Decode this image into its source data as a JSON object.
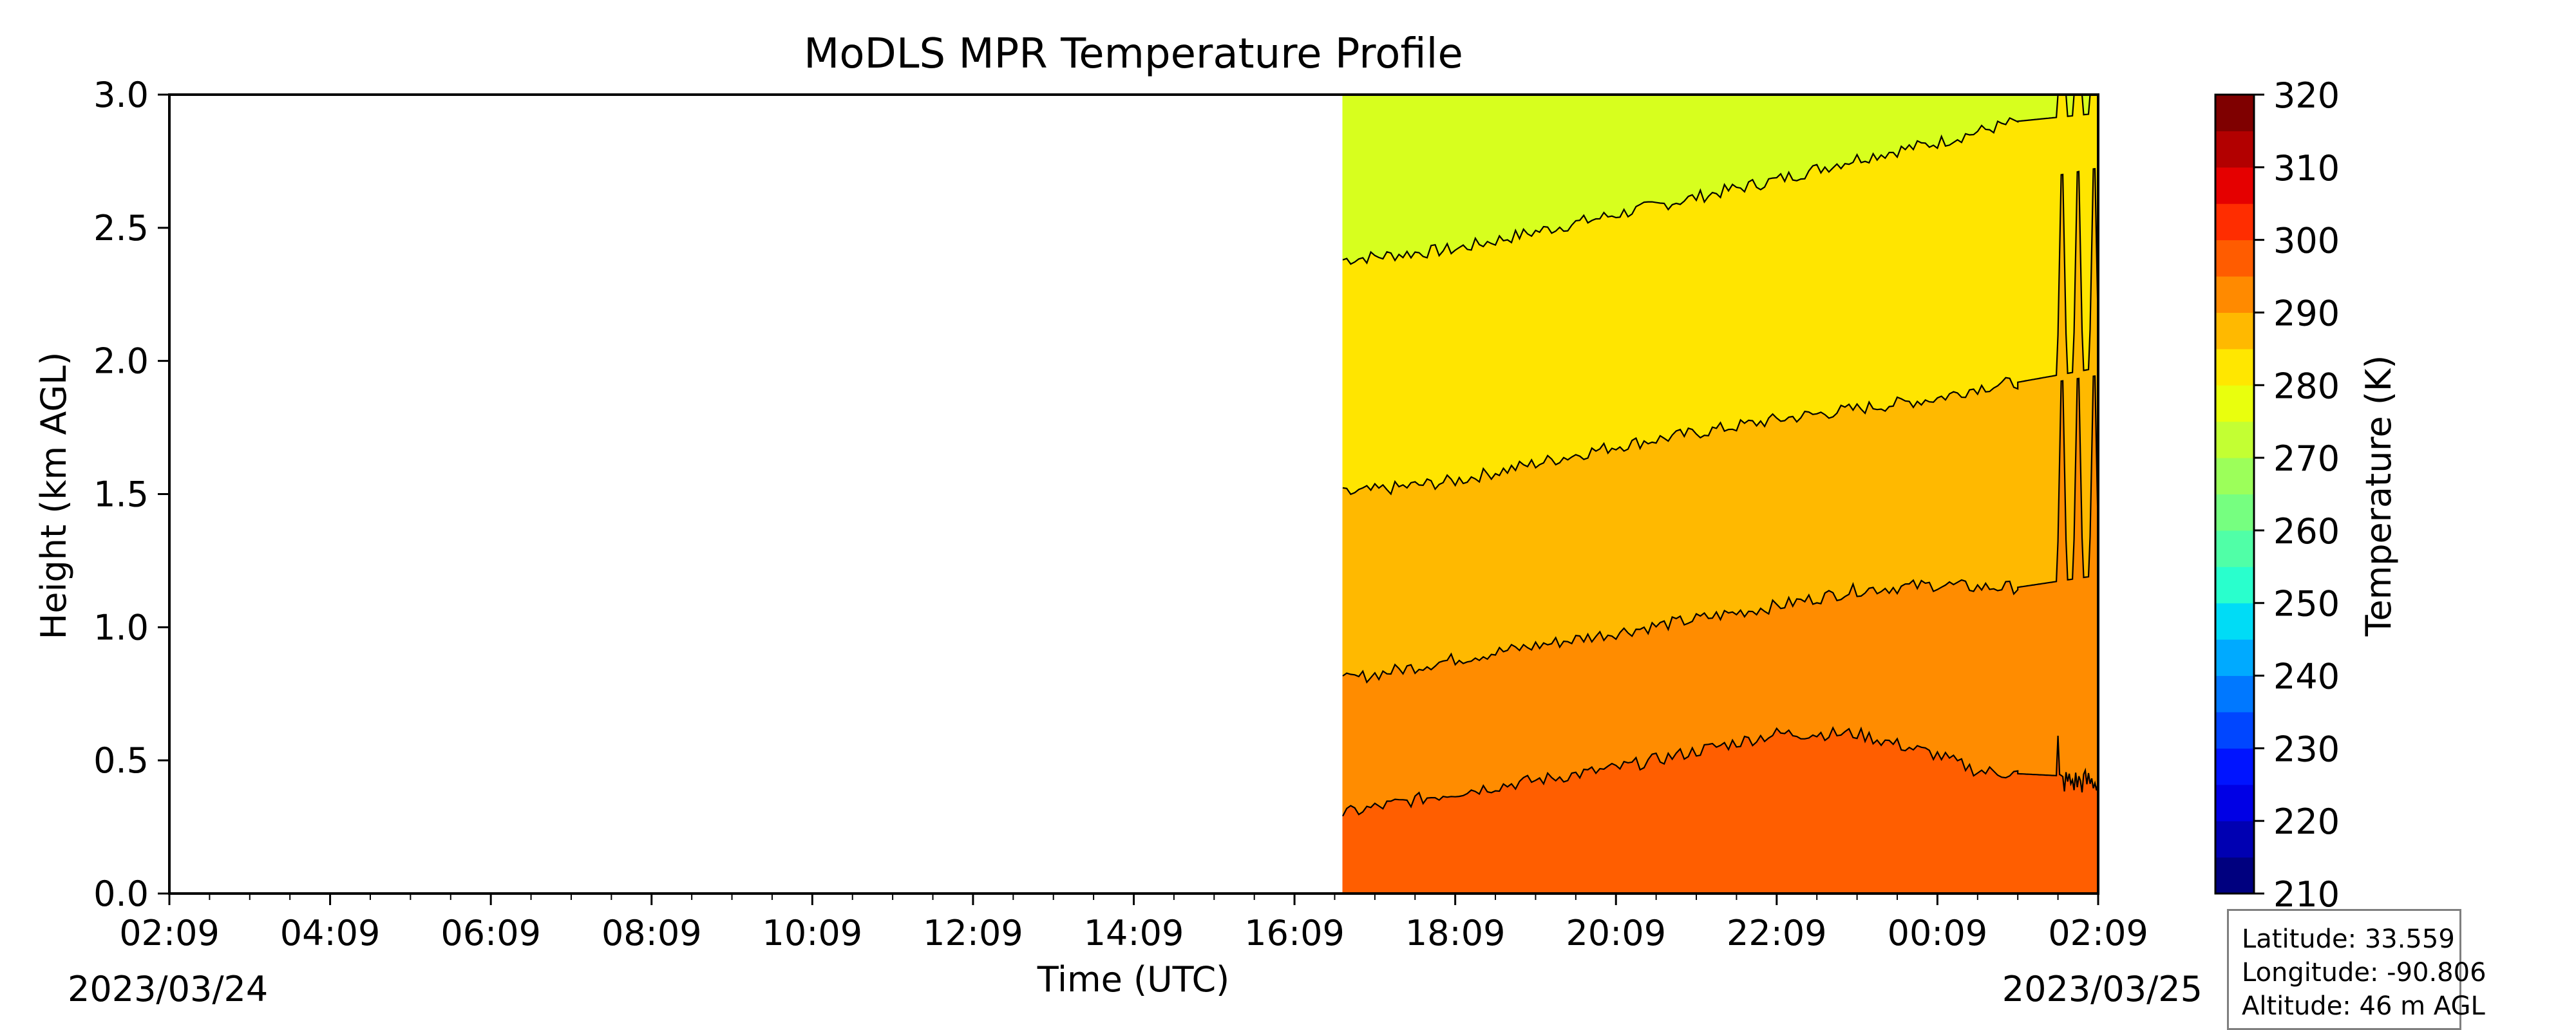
{
  "chart_data": {
    "type": "heatmap",
    "title": "MoDLS MPR Temperature Profile",
    "xlabel": "Time (UTC)",
    "ylabel": "Height (km AGL)",
    "x_tick_labels": [
      "02:09",
      "04:09",
      "06:09",
      "08:09",
      "10:09",
      "12:09",
      "14:09",
      "16:09",
      "18:09",
      "20:09",
      "22:09",
      "00:09",
      "02:09"
    ],
    "x_tick_hours": [
      0,
      2,
      4,
      6,
      8,
      10,
      12,
      14,
      16,
      18,
      20,
      22,
      24
    ],
    "xlim_hours": [
      0,
      24
    ],
    "date_start": "2023/03/24",
    "date_end": "2023/03/25",
    "y_ticks": [
      0.0,
      0.5,
      1.0,
      1.5,
      2.0,
      2.5,
      3.0
    ],
    "y_tick_labels": [
      "0.0",
      "0.5",
      "1.0",
      "1.5",
      "2.0",
      "2.5",
      "3.0"
    ],
    "ylim": [
      0,
      3.0
    ],
    "data_start_hour": 14.6,
    "colorbar": {
      "label": "Temperature (K)",
      "range": [
        210,
        320
      ],
      "ticks": [
        210,
        220,
        230,
        240,
        250,
        260,
        270,
        280,
        290,
        300,
        310,
        320
      ],
      "tick_labels": [
        "210",
        "220",
        "230",
        "240",
        "250",
        "260",
        "270",
        "280",
        "290",
        "300",
        "310",
        "320"
      ],
      "colors": [
        "#00007f",
        "#0000b2",
        "#0000e5",
        "#0014ff",
        "#0046ff",
        "#0078ff",
        "#00aaff",
        "#00dcf6",
        "#29ffcd",
        "#50ffa7",
        "#76ff80",
        "#9cff5a",
        "#c3ff33",
        "#e9ff0d",
        "#ffe700",
        "#ffb900",
        "#ff8a00",
        "#ff5c00",
        "#ff2d00",
        "#e50000",
        "#b20000",
        "#7f0000"
      ]
    },
    "filled_levels": [
      {
        "range": [
          275,
          280
        ],
        "color": "#d7ff1e"
      },
      {
        "range": [
          280,
          285
        ],
        "color": "#ffe500"
      },
      {
        "range": [
          285,
          290
        ],
        "color": "#ffb900"
      },
      {
        "range": [
          290,
          295
        ],
        "color": "#ff8c00"
      },
      {
        "range": [
          295,
          300
        ],
        "color": "#ff5e00"
      }
    ],
    "isotherm_heights_km": {
      "hours": [
        14.6,
        16,
        18,
        20,
        21,
        22,
        22.5,
        23.0
      ],
      "k280": [
        2.38,
        2.42,
        2.55,
        2.68,
        2.76,
        2.82,
        2.86,
        2.9
      ],
      "k285": [
        1.5,
        1.55,
        1.68,
        1.78,
        1.82,
        1.86,
        1.9,
        1.92
      ],
      "k290": [
        0.8,
        0.88,
        0.98,
        1.08,
        1.14,
        1.16,
        1.15,
        1.15
      ],
      "k295": [
        0.3,
        0.38,
        0.47,
        0.6,
        0.6,
        0.52,
        0.46,
        0.45
      ]
    }
  },
  "info": {
    "latitude": "Latitude: 33.559",
    "longitude": "Longitude: -90.806",
    "altitude": "Altitude: 46 m AGL"
  }
}
